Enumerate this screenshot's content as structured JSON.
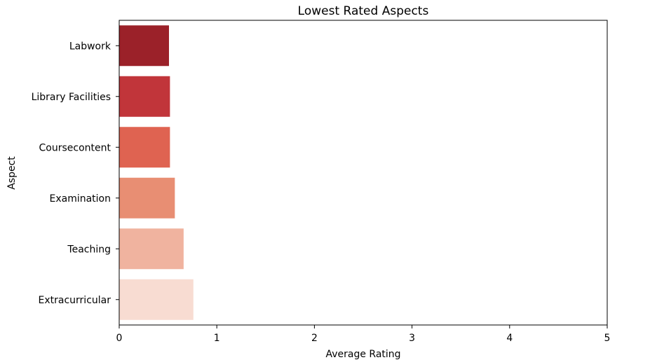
{
  "chart_data": {
    "type": "bar",
    "orientation": "horizontal",
    "title": "Lowest Rated Aspects",
    "xlabel": "Average Rating",
    "ylabel": "Aspect",
    "xlim": [
      0,
      5
    ],
    "xticks": [
      "0",
      "1",
      "2",
      "3",
      "4",
      "5"
    ],
    "grid": false,
    "categories": [
      "Labwork",
      "Library Facilities",
      "Coursecontent",
      "Examination",
      "Teaching",
      "Extracurricular"
    ],
    "values": [
      0.51,
      0.52,
      0.52,
      0.57,
      0.66,
      0.76
    ],
    "colors": [
      "#9b2129",
      "#c1353a",
      "#df6351",
      "#e88e73",
      "#f0b39f",
      "#f8dcd2"
    ]
  }
}
